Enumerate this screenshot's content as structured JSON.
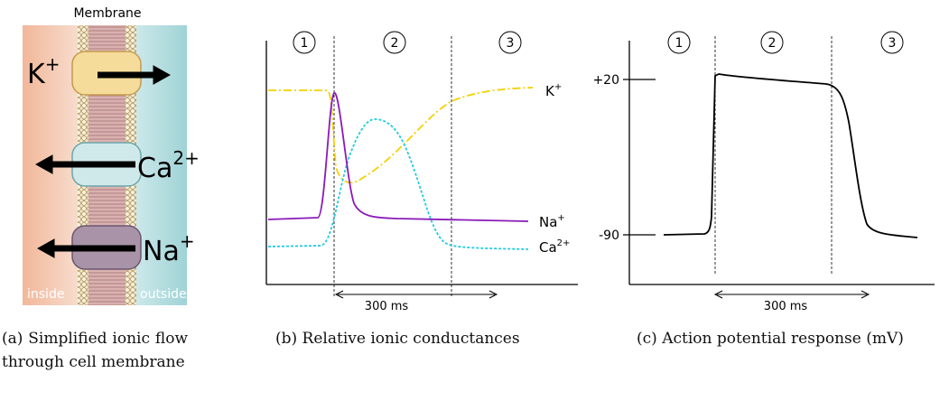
{
  "panel_a": {
    "membrane": "Membrane",
    "ions": [
      {
        "symbol": "K",
        "charge": "+"
      },
      {
        "symbol": "Ca",
        "charge": "2+"
      },
      {
        "symbol": "Na",
        "charge": "+"
      }
    ],
    "inside": "inside",
    "outside": "outside",
    "caption": "(a) Simplified ionic flow through cell membrane"
  },
  "panel_b": {
    "phases": [
      "1",
      "2",
      "3"
    ],
    "duration": "300 ms",
    "curves": [
      {
        "symbol": "K",
        "charge": "+"
      },
      {
        "symbol": "Na",
        "charge": "+"
      },
      {
        "symbol": "Ca",
        "charge": "2+"
      }
    ],
    "caption": "(b) Relative ionic conductances"
  },
  "panel_c": {
    "phases": [
      "1",
      "2",
      "3"
    ],
    "duration": "300 ms",
    "yticks": [
      "+20",
      "-90"
    ],
    "caption": "(c) Action potential response (mV)"
  }
}
